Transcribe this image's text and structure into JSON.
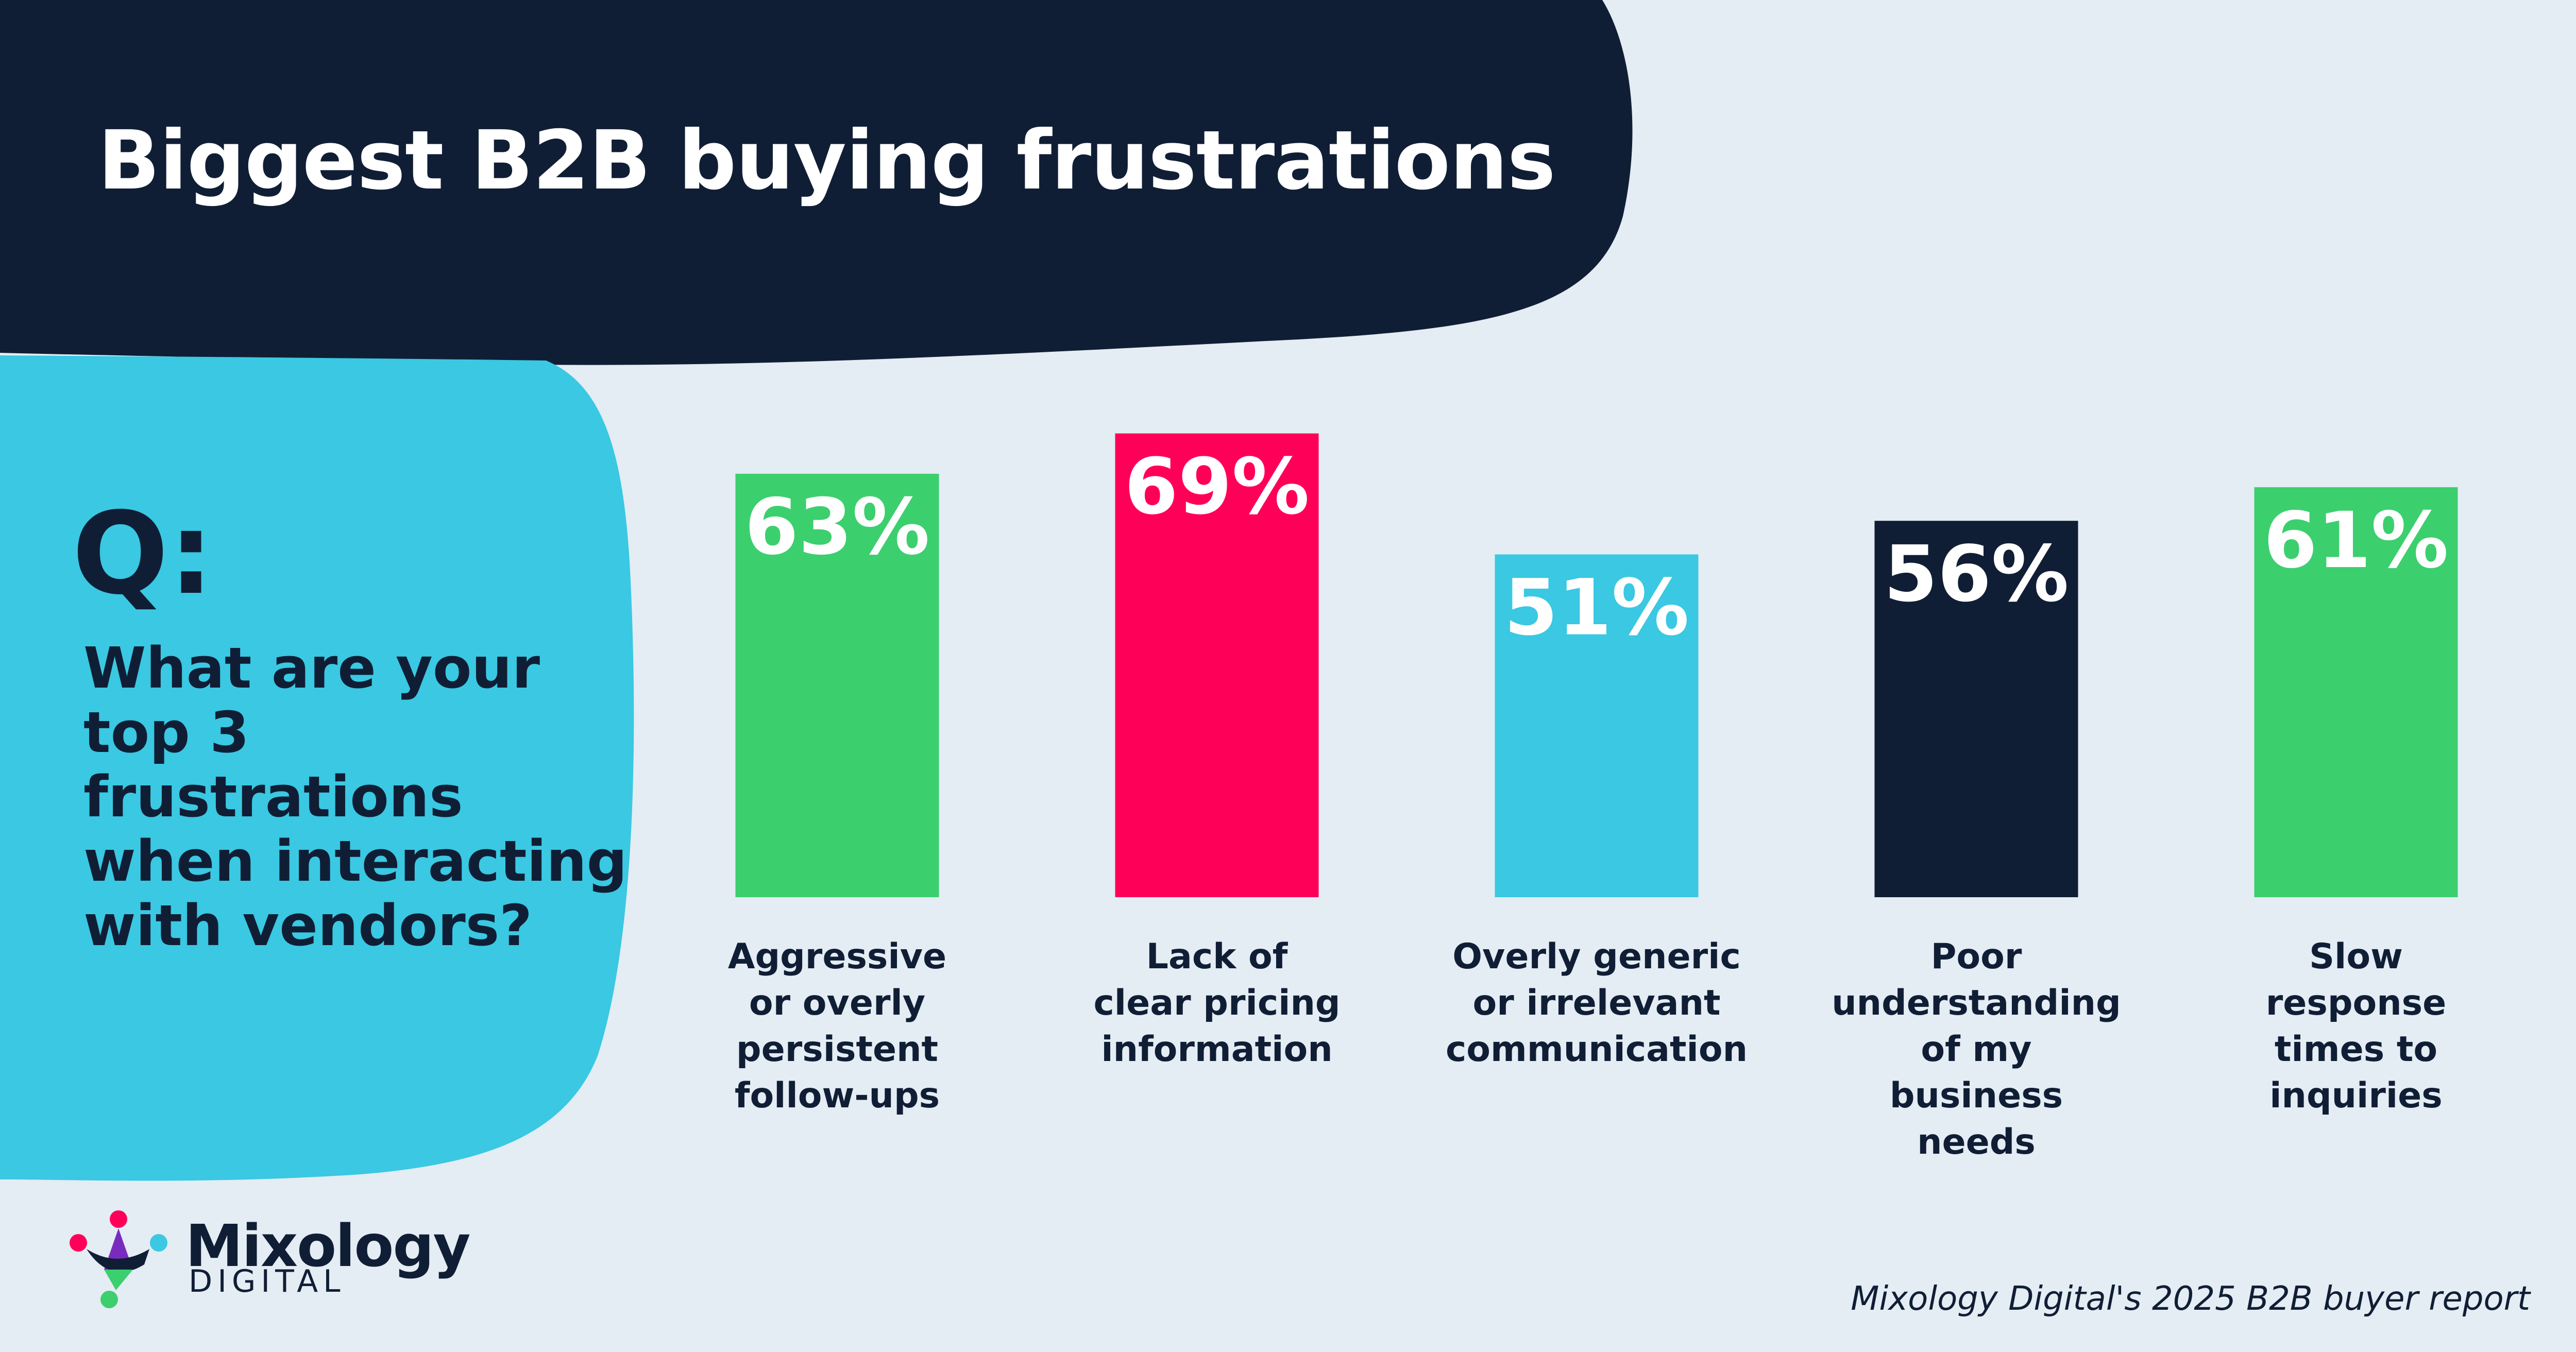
{
  "header": {
    "title": "Biggest B2B buying frustrations"
  },
  "question": {
    "mark": "Q:",
    "text": "What are your top 3 frustrations when interacting with vendors?"
  },
  "chart_data": {
    "type": "bar",
    "title": "Biggest B2B buying frustrations",
    "unit": "%",
    "ylim": [
      0,
      100
    ],
    "categories": [
      [
        "Aggressive",
        "or overly",
        "persistent",
        "follow-ups"
      ],
      [
        "Lack of",
        "clear pricing",
        "information"
      ],
      [
        "Overly generic",
        "or irrelevant",
        "communication"
      ],
      [
        "Poor",
        "understanding",
        "of my",
        "business",
        "needs"
      ],
      [
        "Slow",
        "response",
        "times to",
        "inquiries"
      ]
    ],
    "values": [
      63,
      69,
      51,
      56,
      61
    ],
    "value_labels": [
      "63%",
      "69%",
      "51%",
      "56%",
      "61%"
    ],
    "colors": [
      "#3ccf6e",
      "#ff0058",
      "#3ac8e2",
      "#101e35",
      "#3ccf6e"
    ],
    "grid": false,
    "legend": "none"
  },
  "brand": {
    "name": "Mixology",
    "sub": "DIGITAL"
  },
  "footer": {
    "source": "Mixology Digital's 2025 B2B buyer report"
  },
  "colors": {
    "navy": "#101e35",
    "cyan": "#3ac8e2",
    "background": "#e4ecf4",
    "green": "#3ccf6e",
    "pink": "#ff0058"
  }
}
